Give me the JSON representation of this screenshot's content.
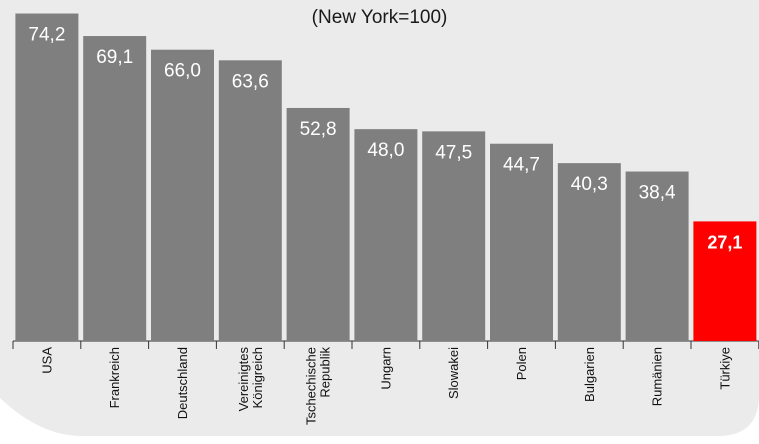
{
  "chart_data": {
    "type": "bar",
    "subtitle": "(New York=100)",
    "categories": [
      "USA",
      "Frankreich",
      "Deutschland",
      "Vereinigtes Königreich",
      "Tschechische Republik",
      "Ungarn",
      "Slowakei",
      "Polen",
      "Bulgarien",
      "Rumänien",
      "Türkiye"
    ],
    "category_labels": [
      [
        "USA"
      ],
      [
        "Frankreich"
      ],
      [
        "Deutschland"
      ],
      [
        "Vereinigtes",
        "Königreich"
      ],
      [
        "Tschechische",
        "Republik"
      ],
      [
        "Ungarn"
      ],
      [
        "Slowakei"
      ],
      [
        "Polen"
      ],
      [
        "Bulgarien"
      ],
      [
        "Rumänien"
      ],
      [
        "Türkiye"
      ]
    ],
    "values": [
      74.2,
      69.1,
      66.0,
      63.6,
      52.8,
      48.0,
      47.5,
      44.7,
      40.3,
      38.4,
      27.1
    ],
    "value_labels": [
      "74,2",
      "69,1",
      "66,0",
      "63,6",
      "52,8",
      "48,0",
      "47,5",
      "44,7",
      "40,3",
      "38,4",
      "27,1"
    ],
    "highlight_index": 10,
    "ylim": [
      0,
      75
    ],
    "grid": false,
    "colors": {
      "bar": "#7f7f7f",
      "highlight": "#ff0000",
      "panel": "#ebebeb",
      "label": "#ffffff",
      "axis": "#333333"
    }
  }
}
